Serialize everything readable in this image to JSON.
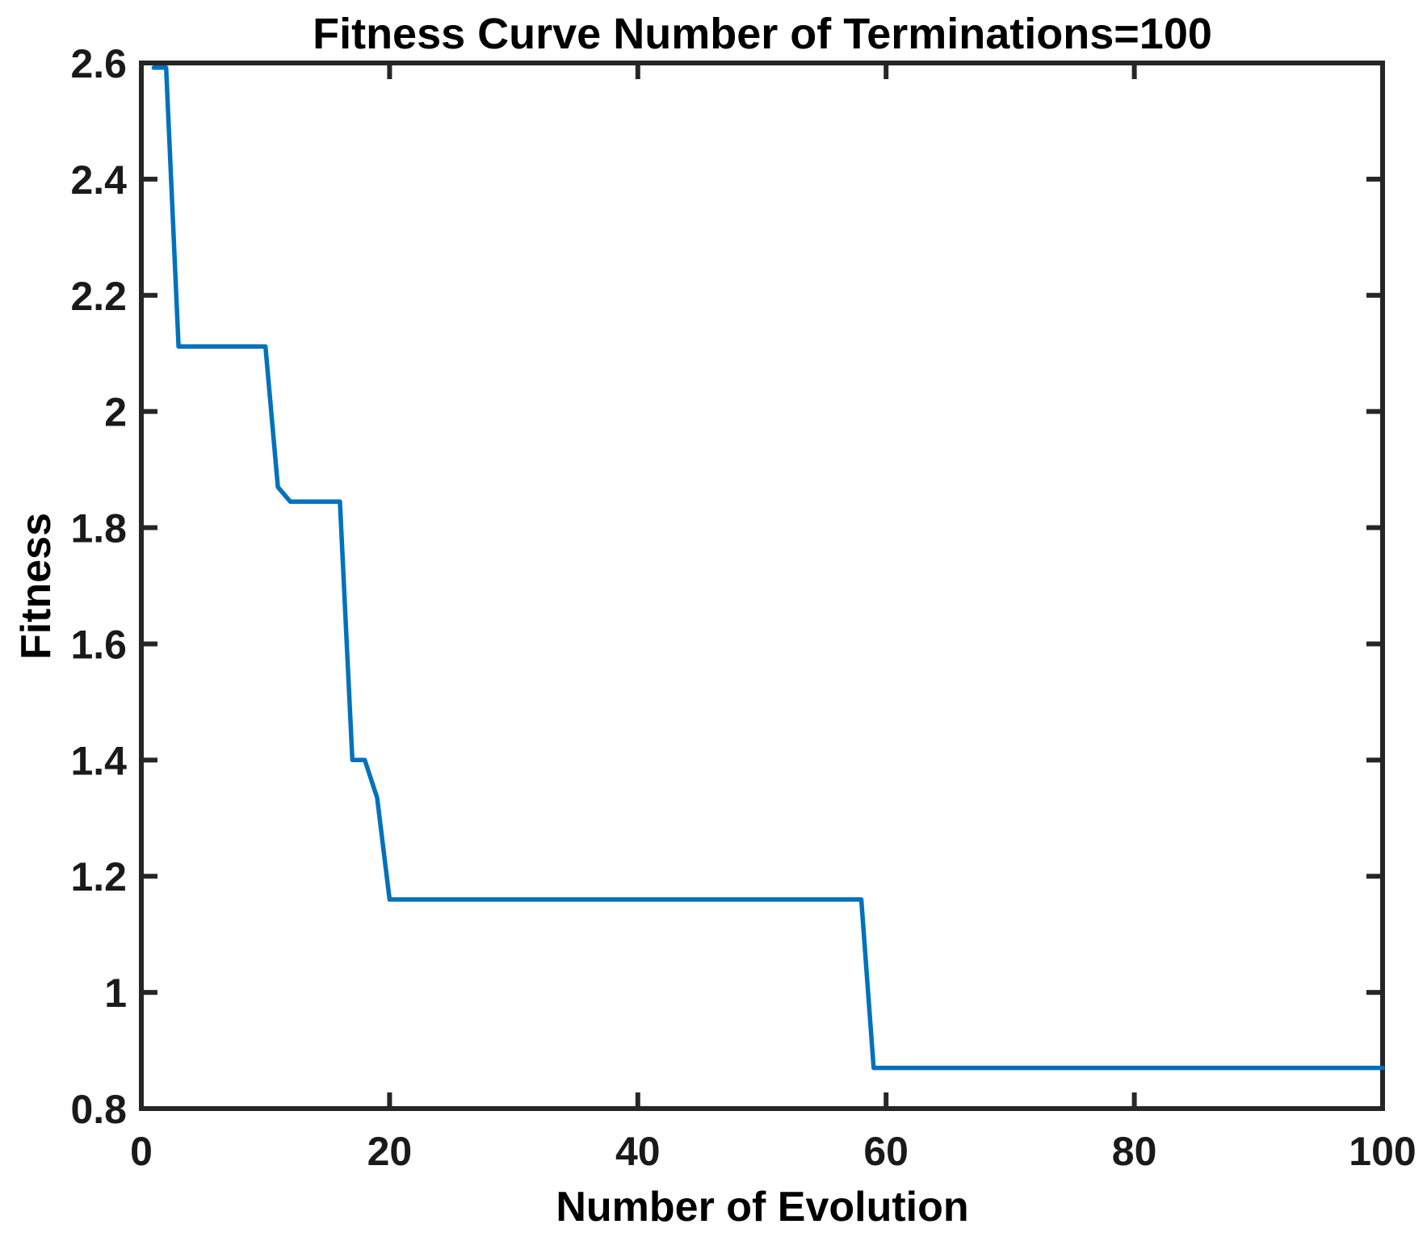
{
  "figure": {
    "background": "#ffffff",
    "axis_color": "#262626",
    "text_color": "#000000"
  },
  "chart_data": {
    "type": "line",
    "title": "Fitness Curve Number of Terminations=100",
    "xlabel": "Number of Evolution",
    "ylabel": "Fitness",
    "xlim": [
      0,
      100
    ],
    "ylim": [
      0.8,
      2.6
    ],
    "xticks": [
      0,
      20,
      40,
      60,
      80,
      100
    ],
    "yticks": [
      0.8,
      1,
      1.2,
      1.4,
      1.6,
      1.8,
      2,
      2.2,
      2.4,
      2.6
    ],
    "grid": false,
    "legend_position": "none",
    "box": true,
    "tick_direction": "in",
    "line_color": "#0072BD",
    "series": [
      {
        "name": "fitness",
        "points": [
          [
            1,
            2.592
          ],
          [
            2,
            2.592
          ],
          [
            3,
            2.112
          ],
          [
            10,
            2.112
          ],
          [
            11,
            1.87
          ],
          [
            12,
            1.845
          ],
          [
            16,
            1.845
          ],
          [
            17,
            1.4
          ],
          [
            18,
            1.4
          ],
          [
            19,
            1.335
          ],
          [
            20,
            1.16
          ],
          [
            58,
            1.16
          ],
          [
            59,
            0.87
          ],
          [
            100,
            0.87
          ]
        ]
      }
    ]
  }
}
